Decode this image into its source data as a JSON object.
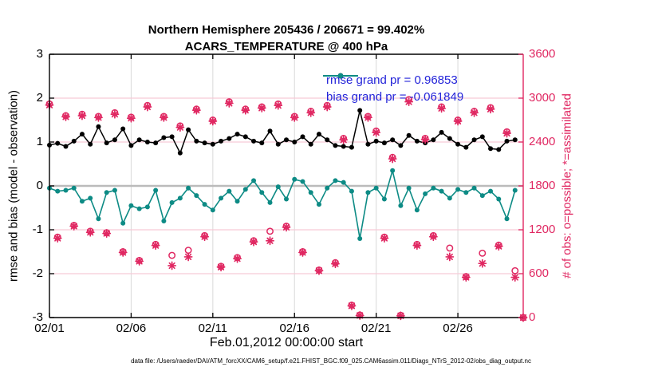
{
  "figure": {
    "title_line1": "Northern Hemisphere 205436 / 206671 = 99.402%",
    "title_line2": "ACARS_TEMPERATURE @ 400 hPa",
    "x_axis_label": "Feb.01,2012 00:00:00 start",
    "y_axis_label_left": "rmse and bias (model - observation)",
    "y_axis_label_right": "# of obs: o=possible; *=assimilated",
    "footer_text": "data file: /Users/raeder/DAI/ATM_forcXX/CAM6_setup/f.e21.FHIST_BGC.f09_025.CAM6assim.011/Diags_NTrS_2012-02/obs_diag_output.nc",
    "legend": {
      "rmse_label": "rmse grand pr = 0.96853",
      "bias_label": "bias grand pr = -0.061849"
    }
  },
  "colors": {
    "rmse": "#000000",
    "bias": "#0d8b85",
    "obs": "#e02862",
    "legend_text": "#2323d9",
    "zero_line": "#bbbbbb",
    "grid_vertical": "#d9d9d9",
    "grid_horizontal": "#f6cad7",
    "axis_left": "#000000",
    "axis_right": "#e02862"
  },
  "chart_data": {
    "type": "line",
    "title": "Northern Hemisphere 205436 / 206671 = 99.402% — ACARS_TEMPERATURE @ 400 hPa",
    "xlabel": "Feb.01,2012 00:00:00 start",
    "ylabel_left": "rmse and bias (model - observation)",
    "ylabel_right": "# of obs: o=possible; *=assimilated",
    "x_start_day": 0,
    "x_step_days": 0.5,
    "xlim_days": [
      0,
      29
    ],
    "x_ticks": [
      {
        "day": 0,
        "label": "02/01"
      },
      {
        "day": 5,
        "label": "02/06"
      },
      {
        "day": 10,
        "label": "02/11"
      },
      {
        "day": 15,
        "label": "02/16"
      },
      {
        "day": 20,
        "label": "02/21"
      },
      {
        "day": 25,
        "label": "02/26"
      }
    ],
    "ylim_left": [
      -3,
      3
    ],
    "yticks_left": [
      3,
      2,
      1,
      0,
      -1,
      -2,
      -3
    ],
    "ylim_right": [
      0,
      3600
    ],
    "yticks_right": [
      0,
      600,
      1200,
      1800,
      2400,
      3000,
      3600
    ],
    "grid": true,
    "legend_position": "top-right-inside",
    "grand_rmse": 0.96853,
    "grand_bias": -0.061849,
    "series": [
      {
        "name": "rmse",
        "axis": "left",
        "marker": "filled-circle",
        "values": [
          0.93,
          0.97,
          0.9,
          1.02,
          1.18,
          0.95,
          1.35,
          0.98,
          1.05,
          1.3,
          0.92,
          1.05,
          1.0,
          0.98,
          1.1,
          1.12,
          0.75,
          1.28,
          1.02,
          0.98,
          0.95,
          1.02,
          1.08,
          1.18,
          1.12,
          1.02,
          0.98,
          1.25,
          0.95,
          1.05,
          1.0,
          1.12,
          0.95,
          1.18,
          1.05,
          0.92,
          0.9,
          0.88,
          1.72,
          0.95,
          1.02,
          0.98,
          1.05,
          0.92,
          1.15,
          1.02,
          0.98,
          1.05,
          1.22,
          1.08,
          0.95,
          0.88,
          1.05,
          1.12,
          0.85,
          0.83,
          1.02,
          1.05,
          null
        ]
      },
      {
        "name": "bias",
        "axis": "left",
        "marker": "filled-circle",
        "values": [
          -0.05,
          -0.12,
          -0.1,
          -0.05,
          -0.35,
          -0.28,
          -0.75,
          -0.15,
          -0.1,
          -0.85,
          -0.45,
          -0.52,
          -0.48,
          -0.1,
          -0.8,
          -0.38,
          -0.28,
          -0.05,
          -0.22,
          -0.42,
          -0.55,
          -0.28,
          -0.12,
          -0.35,
          -0.08,
          0.12,
          -0.15,
          -0.38,
          -0.02,
          -0.3,
          0.15,
          0.1,
          -0.15,
          -0.42,
          -0.05,
          0.12,
          0.08,
          -0.12,
          -1.2,
          -0.15,
          -0.05,
          -0.3,
          0.35,
          -0.45,
          -0.05,
          -0.55,
          -0.18,
          -0.05,
          -0.12,
          -0.28,
          -0.08,
          -0.15,
          -0.05,
          -0.22,
          -0.12,
          -0.3,
          -0.75,
          -0.1,
          null
        ]
      },
      {
        "name": "N_possible",
        "axis": "right",
        "marker": "open-circle",
        "values": [
          2920,
          1100,
          2760,
          1260,
          2780,
          1180,
          2750,
          1160,
          2800,
          900,
          2740,
          780,
          2900,
          1000,
          2750,
          850,
          2620,
          920,
          2850,
          1120,
          2700,
          700,
          2950,
          820,
          2850,
          1050,
          2880,
          1180,
          2920,
          1250,
          2750,
          900,
          2820,
          650,
          2900,
          750,
          2450,
          170,
          35,
          2750,
          2550,
          1100,
          2190,
          30,
          2980,
          1000,
          2450,
          1120,
          2880,
          950,
          2700,
          560,
          2820,
          880,
          2870,
          990,
          2540,
          640,
          0
        ]
      },
      {
        "name": "N_assimilated",
        "axis": "right",
        "marker": "asterisk",
        "values": [
          2905,
          1085,
          2745,
          1250,
          2760,
          1165,
          2735,
          1150,
          2780,
          890,
          2725,
          770,
          2880,
          985,
          2735,
          710,
          2600,
          830,
          2835,
          1105,
          2685,
          690,
          2930,
          805,
          2835,
          1035,
          2865,
          1050,
          2900,
          1235,
          2735,
          890,
          2800,
          640,
          2880,
          735,
          2430,
          160,
          28,
          2735,
          2530,
          1085,
          2170,
          24,
          2950,
          985,
          2435,
          1105,
          2860,
          830,
          2685,
          550,
          2800,
          740,
          2850,
          975,
          2520,
          550,
          0
        ]
      }
    ]
  }
}
